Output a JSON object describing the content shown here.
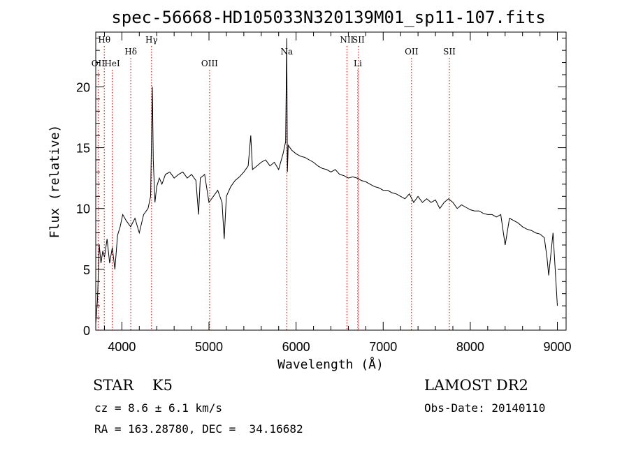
{
  "chart_data": {
    "type": "line",
    "title": "spec-56668-HD105033N320139M01_sp11-107.fits",
    "xlabel": "Wavelength (Å)",
    "ylabel": "Flux (relative)",
    "xlim": [
      3700,
      9100
    ],
    "ylim": [
      0,
      24.5
    ],
    "x_ticks": [
      4000,
      5000,
      6000,
      7000,
      8000,
      9000
    ],
    "y_ticks": [
      0,
      5,
      10,
      15,
      20
    ],
    "grid": false,
    "series": [
      {
        "x": [
          3700,
          3720,
          3740,
          3760,
          3780,
          3800,
          3830,
          3860,
          3890,
          3920,
          3950,
          3980,
          4010,
          4050,
          4100,
          4150,
          4200,
          4250,
          4300,
          4330,
          4350,
          4360,
          4380,
          4400,
          4430,
          4460,
          4500,
          4550,
          4600,
          4650,
          4700,
          4750,
          4800,
          4850,
          4880,
          4900,
          4950,
          5000,
          5050,
          5100,
          5150,
          5175,
          5200,
          5250,
          5300,
          5350,
          5400,
          5450,
          5480,
          5500,
          5550,
          5600,
          5650,
          5700,
          5750,
          5800,
          5850,
          5880,
          5893,
          5900,
          5910,
          5950,
          6000,
          6050,
          6100,
          6150,
          6200,
          6250,
          6300,
          6350,
          6400,
          6450,
          6500,
          6550,
          6600,
          6650,
          6700,
          6750,
          6800,
          6850,
          6900,
          6950,
          7000,
          7050,
          7100,
          7150,
          7200,
          7250,
          7300,
          7350,
          7400,
          7450,
          7500,
          7550,
          7600,
          7650,
          7700,
          7750,
          7800,
          7850,
          7900,
          7950,
          8000,
          8050,
          8100,
          8150,
          8200,
          8250,
          8300,
          8350,
          8400,
          8450,
          8500,
          8550,
          8600,
          8650,
          8700,
          8750,
          8800,
          8850,
          8880,
          8900,
          8950,
          9000
        ],
        "y": [
          0.5,
          2.5,
          7.0,
          5.5,
          6.5,
          6.0,
          7.5,
          5.5,
          6.8,
          5.0,
          7.8,
          8.5,
          9.5,
          9.0,
          8.5,
          9.2,
          8.0,
          9.5,
          10.0,
          11.0,
          20.0,
          14.0,
          10.5,
          11.8,
          12.5,
          12.0,
          12.8,
          13.0,
          12.5,
          12.8,
          13.0,
          12.5,
          12.8,
          12.3,
          9.5,
          12.5,
          12.8,
          10.5,
          11.0,
          11.5,
          10.5,
          7.5,
          11.0,
          11.8,
          12.3,
          12.6,
          13.0,
          13.5,
          16.0,
          13.2,
          13.5,
          13.8,
          14.0,
          13.5,
          13.8,
          13.2,
          14.5,
          15.5,
          24.0,
          13.0,
          15.2,
          14.8,
          14.5,
          14.3,
          14.2,
          14.0,
          13.8,
          13.5,
          13.3,
          13.2,
          13.0,
          13.2,
          12.8,
          12.7,
          12.5,
          12.6,
          12.5,
          12.3,
          12.2,
          12.0,
          11.8,
          11.7,
          11.5,
          11.5,
          11.3,
          11.2,
          11.0,
          10.8,
          11.2,
          10.5,
          11.0,
          10.5,
          10.8,
          10.5,
          10.7,
          10.0,
          10.5,
          10.8,
          10.5,
          10.0,
          10.3,
          10.1,
          9.9,
          9.8,
          9.8,
          9.6,
          9.5,
          9.5,
          9.3,
          9.5,
          7.0,
          9.2,
          9.0,
          8.8,
          8.5,
          8.3,
          8.2,
          8.0,
          7.9,
          7.6,
          6.0,
          4.5,
          8.0,
          2.0
        ]
      }
    ],
    "line_markers": [
      {
        "label": "Hθ",
        "x": 3798,
        "row": 1
      },
      {
        "label": "OII",
        "x": 3727,
        "row": 3
      },
      {
        "label": "HeI",
        "x": 3889,
        "row": 3
      },
      {
        "label": "Hδ",
        "x": 4102,
        "row": 2
      },
      {
        "label": "Hγ",
        "x": 4340,
        "row": 1
      },
      {
        "label": "OIII",
        "x": 5007,
        "row": 3
      },
      {
        "label": "Na",
        "x": 5893,
        "row": 2
      },
      {
        "label": "NII",
        "x": 6583,
        "row": 1
      },
      {
        "label": "SII",
        "x": 6716,
        "row": 1
      },
      {
        "label": "Li",
        "x": 6708,
        "row": 3
      },
      {
        "label": "OII",
        "x": 7325,
        "row": 2
      },
      {
        "label": "SII",
        "x": 7760,
        "row": 2
      }
    ]
  },
  "info": {
    "star_type": "STAR    K5",
    "survey": "LAMOST DR2",
    "cz": "cz = 8.6 ± 6.1 km/s",
    "obs_date": "Obs-Date: 20140110",
    "radec": "RA = 163.28780, DEC =  34.16682"
  },
  "colors": {
    "spectrum": "#000000",
    "marker_line": "#c00000"
  }
}
